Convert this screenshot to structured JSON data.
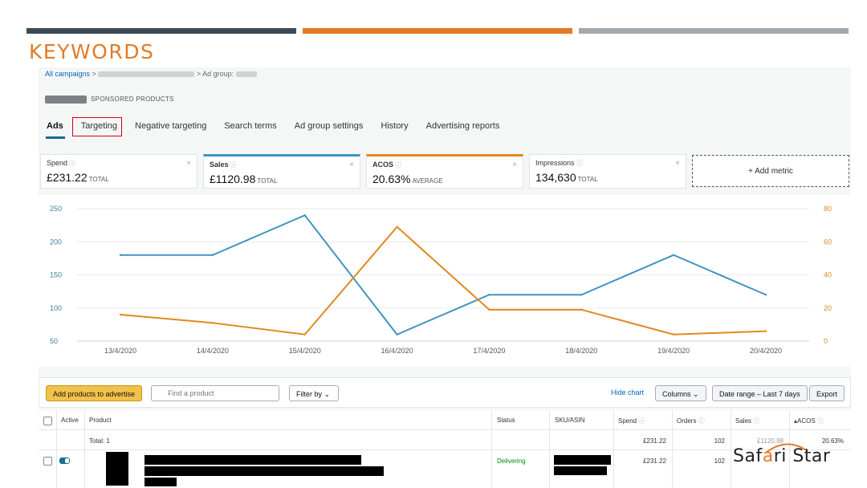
{
  "slide": {
    "title": "KEYWORDS"
  },
  "breadcrumb": {
    "root": "All campaigns",
    "separator": ">",
    "adgroup_prefix": "Ad group:"
  },
  "adgroup": {
    "type_label": "SPONSORED PRODUCTS"
  },
  "tabs": [
    {
      "label": "Ads",
      "active": true
    },
    {
      "label": "Targeting",
      "highlighted": true
    },
    {
      "label": "Negative targeting"
    },
    {
      "label": "Search terms"
    },
    {
      "label": "Ad group settings"
    },
    {
      "label": "History"
    },
    {
      "label": "Advertising reports"
    }
  ],
  "metrics": [
    {
      "label": "Spend",
      "value": "£231.22",
      "unit": "TOTAL"
    },
    {
      "label": "Sales",
      "value": "£1120.98",
      "unit": "TOTAL",
      "color": "#4194c0"
    },
    {
      "label": "ACOS",
      "value": "20.63%",
      "unit": "AVERAGE",
      "color": "#e0891f"
    },
    {
      "label": "Impressions",
      "value": "134,630",
      "unit": "TOTAL"
    }
  ],
  "add_metric_label": "+ Add metric",
  "chart_data": {
    "type": "line",
    "x": [
      "13/4/2020",
      "14/4/2020",
      "15/4/2020",
      "16/4/2020",
      "17/4/2020",
      "18/4/2020",
      "19/4/2020",
      "20/4/2020"
    ],
    "series": [
      {
        "axis": "left",
        "color": "#4194c0",
        "values": [
          180,
          180,
          240,
          60,
          120,
          120,
          180,
          120
        ]
      },
      {
        "axis": "right",
        "color": "#e0891f",
        "values": [
          16,
          11,
          4,
          69,
          19,
          19,
          4,
          6
        ]
      }
    ],
    "y_left": {
      "range": [
        50,
        250
      ],
      "ticks": [
        "250",
        "200",
        "150",
        "100",
        "50"
      ],
      "color": "#3d7fa6"
    },
    "y_right": {
      "range": [
        0,
        80
      ],
      "ticks": [
        "80",
        "60",
        "40",
        "20",
        "0"
      ],
      "color": "#e0891f"
    },
    "grid": true
  },
  "toolbar": {
    "add_products": "Add products to advertise",
    "find_placeholder": "Find a product",
    "filter_by": "Filter by",
    "hide_chart": "Hide chart",
    "columns": "Columns",
    "date_range": "Date range – Last 7 days",
    "export": "Export"
  },
  "table": {
    "headers": {
      "active": "Active",
      "product": "Product",
      "status": "Status",
      "sku": "SKU/ASIN",
      "spend": "Spend",
      "orders": "Orders",
      "sales": "Sales",
      "acos": "ACOS"
    },
    "total": {
      "label": "Total: 1",
      "spend": "£231.22",
      "orders": "102",
      "sales": "£1120.98",
      "acos": "20.63%"
    },
    "rows": [
      {
        "status": "Delivering",
        "spend": "£231.22",
        "orders": "102"
      }
    ]
  },
  "watermark": {
    "text_a": "Saf",
    "text_o": "a",
    "text_b": "ri Star"
  },
  "colors": {
    "accent_orange": "#e37a25",
    "dark_slate": "#3d4b57",
    "link_blue": "#0066c0",
    "status_green": "#008a00"
  }
}
